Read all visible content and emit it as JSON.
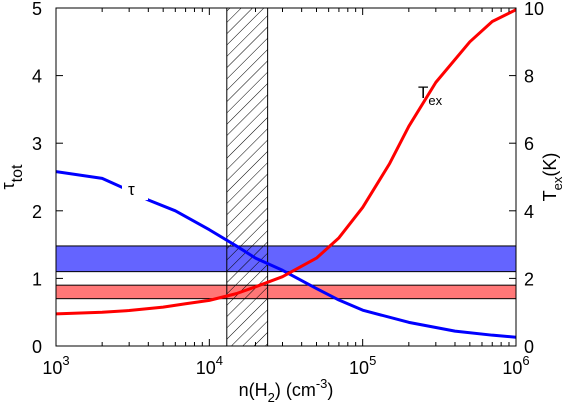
{
  "chart_data": {
    "type": "line",
    "x_scale": "log",
    "xlim": [
      1000,
      1000000
    ],
    "ylim_left": [
      0,
      5
    ],
    "ylim_right": [
      0,
      10
    ],
    "xlabel": {
      "pre": "n(H",
      "sub": "2",
      "post": ") (cm",
      "sup": "-3",
      "end": ")"
    },
    "ylabel_left": {
      "base": "τ",
      "sub": "tot"
    },
    "ylabel_right": {
      "base": "T",
      "sub": "ex",
      "post": "(K)"
    },
    "x_ticks": [
      {
        "value": 1000,
        "base": "10",
        "exp": "3"
      },
      {
        "value": 10000,
        "base": "10",
        "exp": "4"
      },
      {
        "value": 100000,
        "base": "10",
        "exp": "5"
      },
      {
        "value": 1000000,
        "base": "10",
        "exp": "6"
      }
    ],
    "y_ticks_left": [
      "0",
      "1",
      "2",
      "3",
      "4",
      "5"
    ],
    "y_ticks_right": [
      "0",
      "2",
      "4",
      "6",
      "8",
      "10"
    ],
    "series": [
      {
        "label": "τ",
        "axis": "left",
        "color": "#0000ff",
        "x": [
          1000,
          2000,
          3000,
          4000,
          6000,
          10000,
          15000,
          20000,
          30000,
          50000,
          70000,
          100000,
          200000,
          400000,
          700000,
          1000000
        ],
        "y": [
          2.58,
          2.48,
          2.3,
          2.16,
          2.0,
          1.72,
          1.48,
          1.3,
          1.12,
          0.85,
          0.68,
          0.53,
          0.35,
          0.22,
          0.16,
          0.13
        ]
      },
      {
        "label_base": "T",
        "label_sub": "ex",
        "axis": "right",
        "color": "#ff0000",
        "x": [
          1000,
          2000,
          3000,
          5000,
          7000,
          10000,
          15000,
          20000,
          30000,
          50000,
          70000,
          100000,
          150000,
          200000,
          300000,
          500000,
          700000,
          1000000
        ],
        "y": [
          0.95,
          1.0,
          1.05,
          1.15,
          1.25,
          1.35,
          1.55,
          1.75,
          2.05,
          2.6,
          3.2,
          4.1,
          5.4,
          6.5,
          7.8,
          9.0,
          9.6,
          9.95
        ]
      }
    ],
    "bands": [
      {
        "color": "#6464ff",
        "axis": "left",
        "y": [
          1.1,
          1.48
        ]
      },
      {
        "color": "#ff7777",
        "axis": "left",
        "y": [
          0.7,
          0.9
        ]
      }
    ],
    "hatched_region": {
      "x": [
        13000,
        24000
      ]
    }
  }
}
